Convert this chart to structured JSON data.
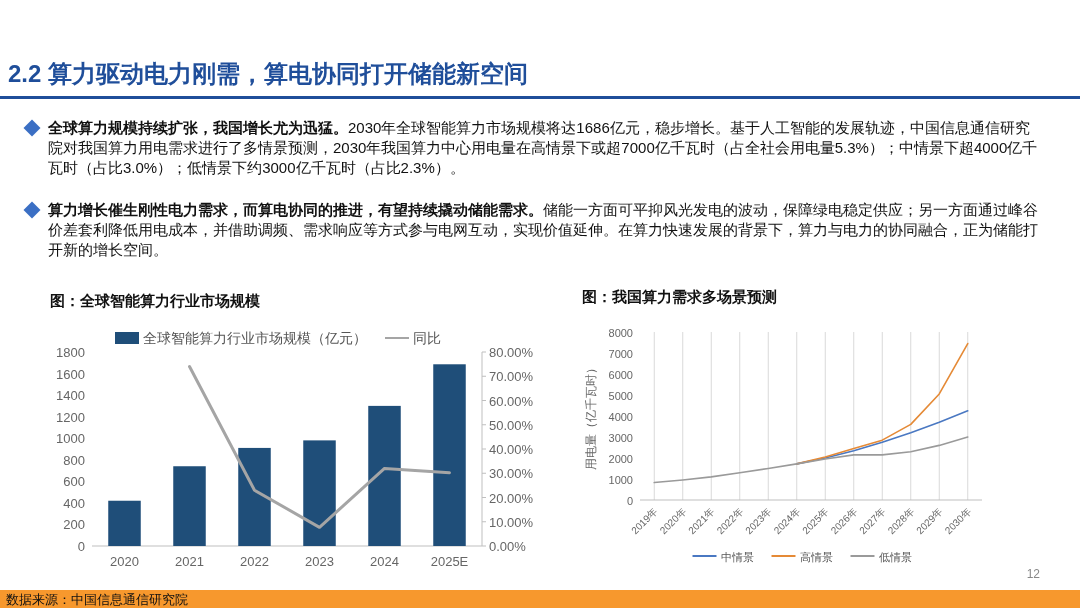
{
  "chart_data": [
    {
      "type": "other",
      "title": "2.2 算力驱动电力刚需，算电协同打开储能新空间",
      "annotations": [
        "全球算力规模持续扩张，我国增长尤为迅猛。2030年全球智能算力市场规模将达1686亿元，稳步增长。基于人工智能的发展轨迹，中国信息通信研究院对我国算力用电需求进行了多情景预测，2030年我国算力中心用电量在高情景下或超7000亿千瓦时（占全社会用电量5.3%）；中情景下超4000亿千瓦时（占比3.0%）；低情景下约3000亿千瓦时（占比2.3%）。",
        "算力增长催生刚性电力需求，而算电协同的推进，有望持续撬动储能需求。储能一方面可平抑风光发电的波动，保障绿电稳定供应；另一方面通过峰谷价差套利降低用电成本，并借助调频、需求响应等方式参与电网互动，实现价值延伸。在算力快速发展的背景下，算力与电力的协同融合，正为储能打开新的增长空间。",
        "数据来源：中国信息通信研究院",
        "12"
      ]
    },
    {
      "type": "bar",
      "title": "图：全球智能算力行业市场规模",
      "categories": [
        "2020",
        "2021",
        "2022",
        "2023",
        "2024",
        "2025E"
      ],
      "series": [
        {
          "name": "全球智能算力行业市场规模（亿元）",
          "type": "bar",
          "color": "#1f4e79",
          "values": [
            420,
            740,
            910,
            980,
            1300,
            1686
          ]
        },
        {
          "name": "同比",
          "type": "line",
          "axis": "y2",
          "color": "#a5a5a5",
          "values": [
            null,
            74,
            23,
            7.7,
            32,
            30.2
          ]
        }
      ],
      "ylim": [
        0,
        1800
      ],
      "yticks": [
        0,
        200,
        400,
        600,
        800,
        1000,
        1200,
        1400,
        1600,
        1800
      ],
      "y2lim": [
        0,
        80
      ],
      "y2ticks": [
        {
          "value": 0,
          "label": "0.00%"
        },
        {
          "value": 10,
          "label": "10.00%"
        },
        {
          "value": 20,
          "label": "20.00%"
        },
        {
          "value": 30,
          "label": "30.00%"
        },
        {
          "value": 40,
          "label": "40.00%"
        },
        {
          "value": 50,
          "label": "50.00%"
        },
        {
          "value": 60,
          "label": "60.00%"
        },
        {
          "value": 70,
          "label": "70.00%"
        },
        {
          "value": 80,
          "label": "80.00%"
        }
      ],
      "legend": "top",
      "grid": false
    },
    {
      "type": "line",
      "title": "图：我国算力需求多场景预测",
      "ylabel": "用电量（亿千瓦时）",
      "categories": [
        "2019年",
        "2020年",
        "2021年",
        "2022年",
        "2023年",
        "2024年",
        "2025年",
        "2026年",
        "2027年",
        "2028年",
        "2029年",
        "2030年"
      ],
      "series": [
        {
          "name": "中情景",
          "color": "#4a78c2",
          "values": [
            null,
            null,
            null,
            null,
            null,
            1720,
            2000,
            2350,
            2750,
            3200,
            3700,
            4250
          ]
        },
        {
          "name": "高情景",
          "color": "#e58a36",
          "values": [
            null,
            null,
            null,
            null,
            null,
            1720,
            2050,
            2450,
            2850,
            3600,
            5050,
            7450
          ]
        },
        {
          "name": "低情景",
          "color": "#9a9a9a",
          "values": [
            830,
            950,
            1100,
            1300,
            1500,
            1720,
            1950,
            2150,
            2150,
            2300,
            2600,
            3000
          ]
        }
      ],
      "ylim": [
        0,
        8000
      ],
      "yticks": [
        0,
        1000,
        2000,
        3000,
        4000,
        5000,
        6000,
        7000,
        8000
      ],
      "legend": "bottom",
      "grid": "x"
    }
  ]
}
